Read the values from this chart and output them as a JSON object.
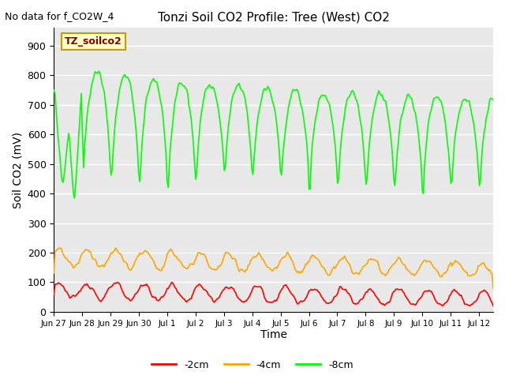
{
  "title": "Tonzi Soil CO2 Profile: Tree (West) CO2",
  "subtitle": "No data for f_CO2W_4",
  "ylabel": "Soil CO2 (mV)",
  "xlabel": "Time",
  "ylim": [
    0,
    960
  ],
  "yticks": [
    0,
    100,
    200,
    300,
    400,
    500,
    600,
    700,
    800,
    900
  ],
  "background_color": "#ffffff",
  "plot_bg_color": "#e8e8e8",
  "grid_color": "#ffffff",
  "series_colors": [
    "#ff0000",
    "#ffa500",
    "#00ff00"
  ],
  "series_labels": [
    "-2cm",
    "-4cm",
    "-8cm"
  ],
  "legend_label": "TZ_soilco2",
  "legend_bg": "#ffffcc",
  "legend_border": "#cc9900",
  "xtick_labels": [
    "Jun 27",
    "Jun 28",
    "Jun 29",
    "Jun 30",
    "Jul 1",
    "Jul 2",
    "Jul 3",
    "Jul 4",
    "Jul 5",
    "Jul 6",
    "Jul 7",
    "Jul 8",
    "Jul 9",
    "Jul 10",
    "Jul 11",
    "Jul 12"
  ],
  "xtick_positions": [
    0,
    1,
    2,
    3,
    4,
    5,
    6,
    7,
    8,
    9,
    10,
    11,
    12,
    13,
    14,
    15
  ]
}
